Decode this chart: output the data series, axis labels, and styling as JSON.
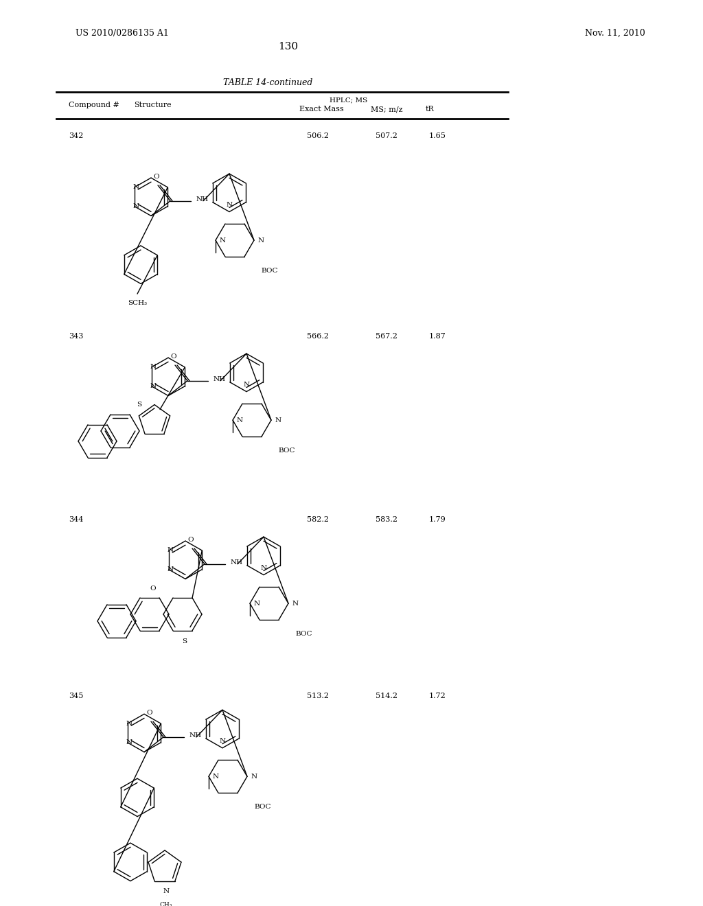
{
  "patent_number": "US 2010/0286135 A1",
  "date": "Nov. 11, 2010",
  "page_number": "130",
  "table_title": "TABLE 14-continued",
  "compounds": [
    {
      "id": "342",
      "exact_mass": "506.2",
      "ms_mz": "507.2",
      "tr": "1.65"
    },
    {
      "id": "343",
      "exact_mass": "566.2",
      "ms_mz": "567.2",
      "tr": "1.87"
    },
    {
      "id": "344",
      "exact_mass": "582.2",
      "ms_mz": "583.2",
      "tr": "1.79"
    },
    {
      "id": "345",
      "exact_mass": "513.2",
      "ms_mz": "514.2",
      "tr": "1.72"
    }
  ],
  "bg_color": "#ffffff",
  "text_color": "#000000"
}
